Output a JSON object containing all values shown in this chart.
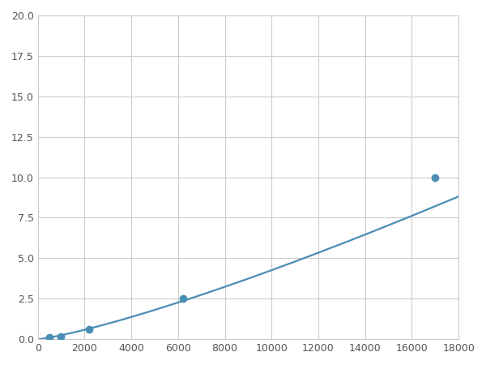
{
  "x_data": [
    200,
    500,
    1000,
    2200,
    6200,
    17000
  ],
  "y_data": [
    0.05,
    0.1,
    0.15,
    0.6,
    2.5,
    10.0
  ],
  "marker_x": [
    500,
    1000,
    2200,
    6200,
    17000
  ],
  "marker_y": [
    0.1,
    0.15,
    0.6,
    2.5,
    10.0
  ],
  "line_color": "#4a8db5",
  "marker_color": "#4a8db5",
  "marker_size": 6,
  "line_width": 1.6,
  "xlim": [
    0,
    18000
  ],
  "ylim": [
    0,
    20.0
  ],
  "xticks": [
    0,
    2000,
    4000,
    6000,
    8000,
    10000,
    12000,
    14000,
    16000,
    18000
  ],
  "yticks": [
    0.0,
    2.5,
    5.0,
    7.5,
    10.0,
    12.5,
    15.0,
    17.5,
    20.0
  ],
  "grid_color": "#cccccc",
  "background_color": "#ffffff",
  "spine_color": "#cccccc"
}
